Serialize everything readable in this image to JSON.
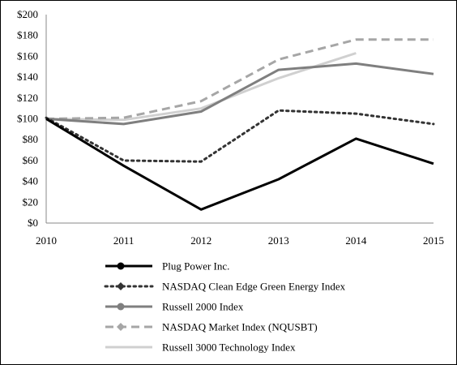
{
  "chart_data": {
    "type": "line",
    "title": "",
    "xlabel": "",
    "ylabel": "",
    "x": [
      "2010",
      "2011",
      "2012",
      "2013",
      "2014",
      "2015"
    ],
    "ylim": [
      0,
      200
    ],
    "yticks": [
      "$0",
      "$20",
      "$40",
      "$60",
      "$80",
      "$100",
      "$120",
      "$140",
      "$160",
      "$180",
      "$200"
    ],
    "grid": false,
    "legend_position": "bottom",
    "series": [
      {
        "name": "Plug Power Inc.",
        "values": [
          100,
          55,
          13,
          42,
          81,
          57
        ],
        "color": "#000000",
        "style": "solid",
        "width": 3,
        "marker": "circle"
      },
      {
        "name": "NASDAQ Clean Edge Green Energy Index",
        "values": [
          101,
          60,
          59,
          108,
          105,
          95
        ],
        "color": "#333333",
        "style": "dotted",
        "width": 3,
        "marker": "diamond"
      },
      {
        "name": "Russell 2000 Index",
        "values": [
          100,
          95,
          107,
          147,
          153,
          143
        ],
        "color": "#7f7f7f",
        "style": "solid",
        "width": 3,
        "marker": "circle"
      },
      {
        "name": "NASDAQ Market Index (NQUSBT)",
        "values": [
          100,
          101,
          117,
          157,
          176,
          176
        ],
        "color": "#a6a6a6",
        "style": "dashed",
        "width": 3,
        "marker": "diamond"
      },
      {
        "name": "Russell 3000 Technology Index",
        "values": [
          100,
          99,
          110,
          139,
          163,
          null
        ],
        "color": "#d0d0d0",
        "style": "solid",
        "width": 3,
        "marker": "none"
      }
    ]
  }
}
